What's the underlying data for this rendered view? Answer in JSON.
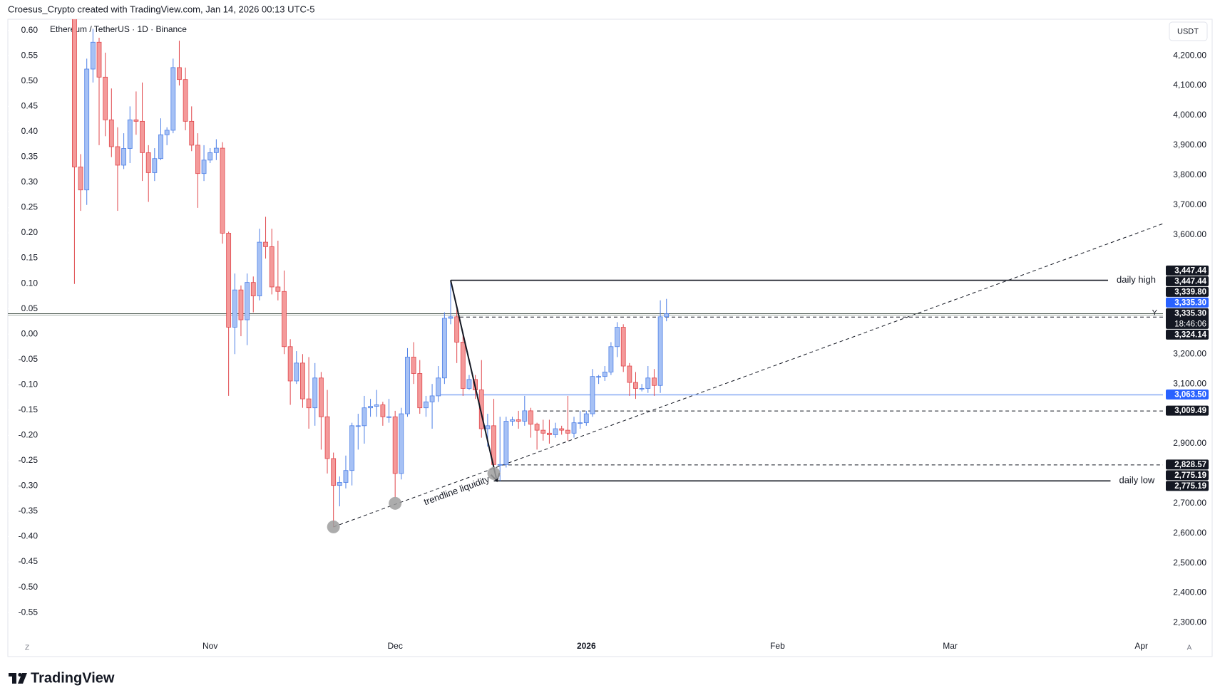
{
  "chart_data": {
    "type": "candlestick",
    "header": "Croesus_Crypto created with TradingView.com, Jan 14, 2026 00:13 UTC-5",
    "title": "Ethereum / TetherUS · 1D · Binance",
    "currency": "USDT",
    "brand": "TradingView",
    "corner_left": "Z",
    "corner_right": "A",
    "up_color": {
      "fill": "#a6c1f5",
      "stroke": "#4d7fe6"
    },
    "down_color": {
      "fill": "#f49a9a",
      "stroke": "#e0474c"
    },
    "open": [
      4369,
      3827,
      3750,
      4155,
      4245,
      4128,
      3985,
      3895,
      3833,
      3889,
      3985,
      3980,
      3875,
      3808,
      3855,
      3935,
      3950,
      4160,
      4120,
      3980,
      3900,
      3805,
      3850,
      3875,
      3890,
      3605,
      3290,
      3415,
      3315,
      3440,
      3395,
      3575,
      3560,
      3425,
      3410,
      3225,
      3110,
      3170,
      3050,
      3020,
      3120,
      2990,
      2850,
      2760,
      2770,
      2810,
      2960,
      2960,
      3020,
      3025,
      3030,
      2990,
      2990,
      2800,
      3000,
      3190,
      3135,
      3020,
      3040,
      3060,
      3120,
      3320,
      3325,
      3240,
      3085,
      3115,
      3080,
      2950,
      2960,
      2830,
      2830,
      2975,
      2980,
      2975,
      3010,
      2965,
      2945,
      2935,
      2930,
      2950,
      2945,
      2935,
      2970,
      2970,
      3000,
      3125,
      3125,
      3140,
      3225,
      3290,
      3160,
      3105,
      3085,
      3085,
      3120,
      3095,
      3325
    ],
    "high": [
      4391,
      3870,
      4190,
      4290,
      4260,
      4210,
      4090,
      3960,
      3940,
      4030,
      4080,
      4110,
      3900,
      3890,
      3990,
      3960,
      4190,
      4250,
      4160,
      4030,
      3940,
      3900,
      3890,
      3920,
      3910,
      3610,
      3470,
      3430,
      3470,
      3460,
      3620,
      3660,
      3620,
      3580,
      3480,
      3250,
      3210,
      3200,
      3190,
      3170,
      3140,
      3080,
      2870,
      2790,
      2860,
      2970,
      3000,
      3060,
      3050,
      3080,
      3040,
      3050,
      3010,
      3020,
      3220,
      3240,
      3180,
      3060,
      3100,
      3160,
      3340,
      3447.44,
      3350,
      3270,
      3130,
      3130,
      3180,
      3000,
      3050,
      2990,
      2990,
      2990,
      3010,
      3060,
      3020,
      2970,
      2980,
      2980,
      2970,
      2960,
      3060,
      2990,
      3010,
      3010,
      3150,
      3130,
      3160,
      3240,
      3307,
      3300,
      3170,
      3140,
      3100,
      3160,
      3150,
      3380,
      3385
    ],
    "low": [
      3435,
      3680,
      3700,
      4110,
      3900,
      3930,
      3860,
      3680,
      3820,
      3840,
      3935,
      3780,
      3710,
      3780,
      3850,
      3900,
      3940,
      4100,
      3950,
      3880,
      3690,
      3780,
      3840,
      3850,
      3570,
      3060,
      3200,
      3260,
      3230,
      3340,
      3380,
      3520,
      3400,
      3380,
      3200,
      3030,
      3100,
      3020,
      2950,
      2960,
      2880,
      2800,
      2620,
      2690,
      2750,
      2760,
      2880,
      2900,
      2990,
      2990,
      2960,
      2970,
      2720,
      2780,
      2990,
      3100,
      3000,
      2990,
      2950,
      3040,
      3100,
      3300,
      3170,
      3060,
      3080,
      3050,
      2920,
      2890,
      2820,
      2775.19,
      2820,
      2960,
      2950,
      2960,
      2920,
      2880,
      2910,
      2900,
      2920,
      2930,
      2910,
      2920,
      2950,
      2960,
      2990,
      3100,
      3110,
      3130,
      3190,
      3140,
      3060,
      3050,
      3075,
      3070,
      3060,
      3070,
      3310
    ],
    "close": [
      3827,
      3750,
      4155,
      4245,
      4128,
      3985,
      3895,
      3833,
      3889,
      3985,
      3980,
      3875,
      3808,
      3855,
      3935,
      3950,
      4160,
      4120,
      3980,
      3900,
      3805,
      3850,
      3875,
      3890,
      3605,
      3290,
      3415,
      3315,
      3440,
      3395,
      3575,
      3560,
      3425,
      3410,
      3225,
      3110,
      3170,
      3050,
      3020,
      3120,
      2990,
      2850,
      2760,
      2770,
      2810,
      2960,
      2960,
      3020,
      3025,
      3030,
      2990,
      2990,
      2800,
      3000,
      3190,
      3135,
      3020,
      3040,
      3060,
      3120,
      3320,
      3325,
      3240,
      3085,
      3115,
      3080,
      2950,
      2960,
      2830,
      2830,
      2975,
      2980,
      2975,
      3010,
      2965,
      2945,
      2935,
      2930,
      2950,
      2945,
      2935,
      2970,
      2970,
      3000,
      3125,
      3125,
      3140,
      3225,
      3290,
      3160,
      3105,
      3085,
      3085,
      3120,
      3095,
      3325,
      3335.3
    ],
    "xlim": [
      -10.8,
      176.5
    ],
    "xticks": [
      {
        "value": 22,
        "label": "Nov"
      },
      {
        "value": 52,
        "label": "Dec"
      },
      {
        "value": 83,
        "label": "2026",
        "bold": true
      },
      {
        "value": 114,
        "label": "Feb"
      },
      {
        "value": 142,
        "label": "Mar"
      },
      {
        "value": 173,
        "label": "Apr"
      }
    ],
    "ylim": [
      2251,
      4322
    ],
    "yticks": [
      {
        "value": 4200,
        "label": "4,200.00"
      },
      {
        "value": 4100,
        "label": "4,100.00"
      },
      {
        "value": 4000,
        "label": "4,000.00"
      },
      {
        "value": 3900,
        "label": "3,900.00"
      },
      {
        "value": 3800,
        "label": "3,800.00"
      },
      {
        "value": 3700,
        "label": "3,700.00"
      },
      {
        "value": 3600,
        "label": "3,600.00"
      },
      {
        "value": 3200,
        "label": "3,200.00"
      },
      {
        "value": 3100,
        "label": "3,100.00"
      },
      {
        "value": 2900,
        "label": "2,900.00"
      },
      {
        "value": 2700,
        "label": "2,700.00"
      },
      {
        "value": 2600,
        "label": "2,600.00"
      },
      {
        "value": 2500,
        "label": "2,500.00"
      },
      {
        "value": 2400,
        "label": "2,400.00"
      },
      {
        "value": 2300,
        "label": "2,300.00"
      }
    ],
    "y2lim": [
      -0.599,
      0.622
    ],
    "y2ticks": [
      {
        "value": 0.6,
        "label": "0.60"
      },
      0.55,
      {
        "value": 0.5,
        "label": "0.50"
      },
      0.45,
      {
        "value": 0.4,
        "label": "0.40"
      },
      0.35,
      {
        "value": 0.3,
        "label": "0.30"
      },
      0.25,
      {
        "value": 0.2,
        "label": "0.20"
      },
      0.15,
      {
        "value": 0.1,
        "label": "0.10"
      },
      0.05,
      {
        "value": 0,
        "label": "0.00"
      },
      -0.05,
      {
        "value": -0.1,
        "label": "-0.10"
      },
      -0.15,
      {
        "value": -0.2,
        "label": "-0.20"
      },
      -0.25,
      {
        "value": -0.3,
        "label": "-0.30"
      },
      -0.35,
      {
        "value": -0.4,
        "label": "-0.40"
      },
      -0.45,
      {
        "value": -0.5,
        "label": "-0.50"
      },
      -0.55
    ],
    "price_labels": [
      {
        "value": 3447.44,
        "label": "3,447.44",
        "color": "#131722"
      },
      {
        "value": 3447.44,
        "label": "3,447.44",
        "color": "#131722"
      },
      {
        "value": 3339.8,
        "label": "3,339.80",
        "color": "#131722"
      },
      {
        "value": 3335.3,
        "label": "3,335.30",
        "color": "#2962ff"
      },
      {
        "value": 3335.3,
        "label": "3,335.30",
        "color": "#131722",
        "sub": "18:46:06"
      },
      {
        "value": 3324.14,
        "label": "3,324.14",
        "color": "#131722"
      },
      {
        "value": 3063.5,
        "label": "3,063.50",
        "color": "#2962ff"
      },
      {
        "value": 3009.49,
        "label": "3,009.49",
        "color": "#131722"
      },
      {
        "value": 2828.57,
        "label": "2,828.57",
        "color": "#131722"
      },
      {
        "value": 2775.19,
        "label": "2,775.19",
        "color": "#131722"
      },
      {
        "value": 2775.19,
        "label": "2,775.19",
        "color": "#131722"
      }
    ],
    "lines": [
      {
        "price": 3447.44,
        "x0": 61,
        "x1": 167.6,
        "style": "solid",
        "color": "#131722",
        "label": "daily high"
      },
      {
        "price": 2775.19,
        "x0": 68,
        "x1": 168,
        "style": "solid",
        "color": "#131722",
        "label": "daily low"
      },
      {
        "price": 3324.14,
        "x0": 62.5,
        "style": "dashed",
        "color": "#131722"
      },
      {
        "price": 3009.49,
        "x0": 75,
        "style": "dashed",
        "color": "#131722"
      },
      {
        "price": 2828.57,
        "x0": 69.3,
        "style": "dashed",
        "color": "#131722"
      },
      {
        "price": 3063.5,
        "x0": 58.6,
        "style": "solid",
        "color": "#8fb0f5"
      }
    ],
    "last_price": {
      "price": 3335.3,
      "marker": "Y",
      "color": "#4d5b52"
    },
    "trendline": {
      "from": [
        42,
        2621
      ],
      "to": [
        176.5,
        3637
      ],
      "text": "trendline liquidity",
      "text_at": [
        62,
        2772
      ]
    },
    "arrow": {
      "from": [
        61,
        3447.44
      ],
      "to": [
        68.5,
        2775.19
      ]
    },
    "circles": [
      [
        42,
        2621
      ],
      [
        52,
        2700
      ],
      [
        68,
        2800
      ]
    ]
  }
}
